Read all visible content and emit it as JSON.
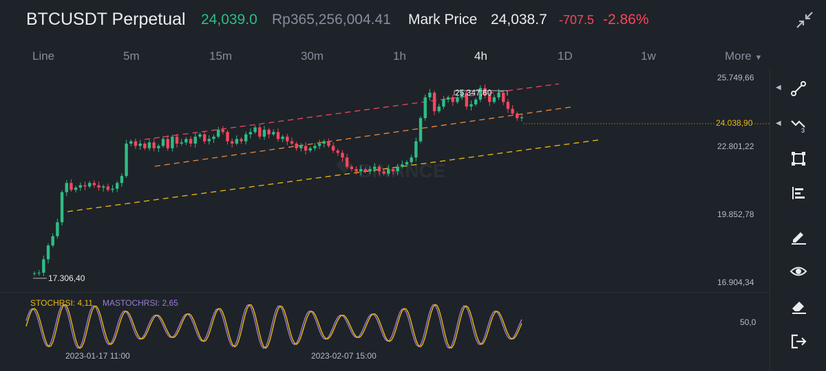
{
  "header": {
    "symbol": "BTCUSDT Perpetual",
    "last_price": "24,039.0",
    "local_price": "Rp365,256,004.41",
    "mark_label": "Mark Price",
    "mark_value": "24,038.7",
    "change": "-707.5",
    "change_pct": "-2.86%"
  },
  "intervals": [
    {
      "label": "Line",
      "active": false
    },
    {
      "label": "5m",
      "active": false
    },
    {
      "label": "15m",
      "active": false
    },
    {
      "label": "30m",
      "active": false
    },
    {
      "label": "1h",
      "active": false
    },
    {
      "label": "4h",
      "active": true
    },
    {
      "label": "1D",
      "active": false
    },
    {
      "label": "1w",
      "active": false
    },
    {
      "label": "More",
      "active": false
    }
  ],
  "price_axis": {
    "ticks": [
      "25.749,66",
      "22.801,22",
      "19.852,78",
      "16.904,34"
    ],
    "current": "24.038,90"
  },
  "annotations": {
    "high": "25.347,60",
    "low": "17.306,40"
  },
  "indicator": {
    "stoch_label": "STOCHRSI: 4,11",
    "ma_label": "MASTOCHRSI: 2,65",
    "level": "50,0"
  },
  "time_axis": [
    "2023-01-17 11:00",
    "2023-02-07 15:00"
  ],
  "watermark": "BINANCE",
  "colors": {
    "up": "#2ebd85",
    "down": "#f6465d",
    "accent": "#f0b90b",
    "ma_line": "#9b7fd1",
    "stoch_line": "#f0b90b"
  },
  "toolbar": [
    {
      "icon": "trend-line-icon",
      "caret": true
    },
    {
      "icon": "fib-tool-icon",
      "caret": true
    },
    {
      "icon": "shape-rectangle-icon",
      "caret": false
    },
    {
      "icon": "text-align-icon",
      "caret": false
    },
    {
      "icon": "edit-pencil-icon",
      "caret": false
    },
    {
      "icon": "eye-icon",
      "caret": false
    },
    {
      "icon": "eraser-icon",
      "caret": false
    },
    {
      "icon": "exit-icon",
      "caret": false
    }
  ],
  "chart_data": {
    "type": "candlestick",
    "y_range": [
      16904.34,
      25749.66
    ],
    "current_price": 24038.9,
    "high": 25347.6,
    "low": 17306.4,
    "closes": [
      17300,
      17320,
      17900,
      18500,
      18900,
      19500,
      20800,
      21200,
      20900,
      21000,
      21100,
      21050,
      21200,
      21100,
      21000,
      21050,
      20900,
      20950,
      21200,
      21500,
      22900,
      23000,
      22800,
      22900,
      22700,
      22950,
      22700,
      22800,
      23100,
      22700,
      23200,
      22900,
      22950,
      23100,
      22900,
      23200,
      23300,
      23000,
      23100,
      23200,
      23500,
      23400,
      23000,
      22900,
      23100,
      23000,
      23300,
      23400,
      23600,
      23200,
      23500,
      23300,
      23400,
      23100,
      23200,
      23000,
      22900,
      22700,
      22800,
      22600,
      22700,
      22800,
      22900,
      23000,
      22800,
      22600,
      22500,
      22300,
      21900,
      21800,
      21700,
      21800,
      21700,
      21800,
      21900,
      21700,
      21600,
      21800,
      21700,
      21900,
      22000,
      22100,
      22300,
      23000,
      24000,
      24900,
      25100,
      24300,
      24500,
      24800,
      24900,
      24700,
      24900,
      25100,
      24500,
      24600,
      24800,
      25300,
      25000,
      24700,
      24900,
      25100,
      24700,
      24400,
      24200,
      24000,
      24039
    ],
    "stoch_rsi_final": 4.11,
    "ma_stoch_rsi_final": 2.65
  }
}
